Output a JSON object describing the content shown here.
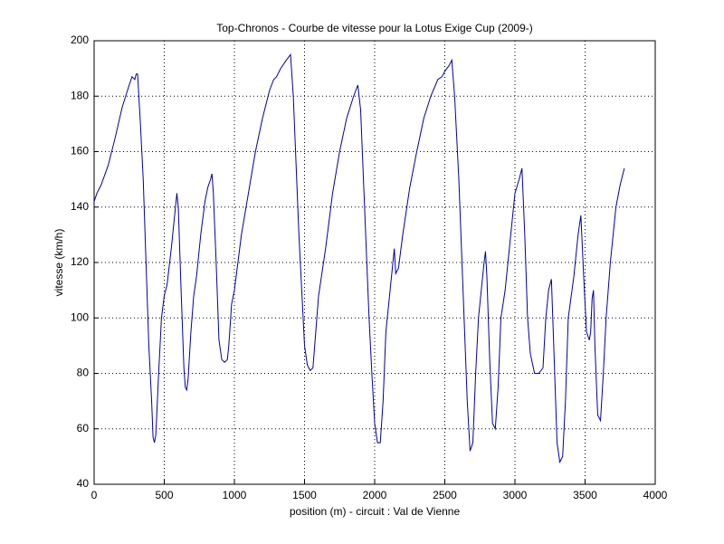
{
  "chart_data": {
    "type": "line",
    "title": "Top-Chronos - Courbe de vitesse pour la Lotus Exige Cup (2009-)",
    "x_label": "position (m) - circuit : Val de Vienne",
    "y_label": "vitesse (km/h)",
    "x": [
      0,
      20,
      50,
      100,
      150,
      200,
      250,
      270,
      290,
      300,
      310,
      330,
      350,
      370,
      390,
      410,
      420,
      430,
      440,
      460,
      480,
      500,
      520,
      550,
      570,
      590,
      600,
      620,
      640,
      650,
      660,
      670,
      690,
      710,
      730,
      760,
      790,
      810,
      830,
      840,
      850,
      870,
      890,
      910,
      930,
      950,
      960,
      980,
      1000,
      1050,
      1100,
      1150,
      1200,
      1250,
      1280,
      1300,
      1330,
      1370,
      1400,
      1420,
      1440,
      1460,
      1480,
      1500,
      1520,
      1540,
      1560,
      1580,
      1600,
      1650,
      1700,
      1750,
      1800,
      1850,
      1880,
      1900,
      1920,
      1940,
      1960,
      1980,
      2000,
      2020,
      2040,
      2060,
      2080,
      2100,
      2120,
      2140,
      2150,
      2170,
      2200,
      2250,
      2300,
      2350,
      2400,
      2450,
      2480,
      2500,
      2530,
      2550,
      2570,
      2600,
      2630,
      2660,
      2680,
      2700,
      2720,
      2740,
      2760,
      2780,
      2790,
      2800,
      2820,
      2840,
      2860,
      2880,
      2900,
      2930,
      2960,
      3000,
      3030,
      3050,
      3070,
      3090,
      3110,
      3140,
      3170,
      3200,
      3220,
      3240,
      3260,
      3280,
      3300,
      3320,
      3340,
      3360,
      3380,
      3420,
      3450,
      3470,
      3490,
      3510,
      3530,
      3540,
      3550,
      3560,
      3570,
      3590,
      3610,
      3630,
      3650,
      3680,
      3720,
      3750,
      3780
    ],
    "series": [
      {
        "name": "vitesse",
        "color": "#0000a0",
        "values": [
          142,
          145,
          148,
          155,
          165,
          176,
          184,
          187,
          186,
          188,
          188,
          170,
          150,
          120,
          90,
          70,
          57,
          55,
          58,
          80,
          100,
          108,
          112,
          125,
          135,
          145,
          140,
          110,
          82,
          75,
          74,
          78,
          95,
          108,
          115,
          130,
          142,
          147,
          150,
          152,
          145,
          120,
          92,
          85,
          84,
          85,
          90,
          105,
          110,
          130,
          145,
          160,
          172,
          182,
          186,
          187,
          190,
          193,
          195,
          180,
          155,
          130,
          110,
          90,
          83,
          81,
          82,
          95,
          108,
          125,
          145,
          160,
          172,
          180,
          184,
          175,
          150,
          125,
          100,
          80,
          62,
          55,
          55,
          70,
          95,
          105,
          115,
          125,
          116,
          118,
          130,
          147,
          160,
          172,
          180,
          186,
          187,
          189,
          191,
          193,
          180,
          150,
          110,
          70,
          52,
          55,
          80,
          100,
          110,
          120,
          124,
          115,
          85,
          62,
          60,
          75,
          100,
          110,
          125,
          145,
          150,
          154,
          130,
          100,
          87,
          80,
          80,
          82,
          100,
          110,
          114,
          85,
          55,
          48,
          50,
          70,
          100,
          115,
          130,
          137,
          115,
          95,
          92,
          95,
          107,
          110,
          90,
          65,
          63,
          80,
          100,
          120,
          140,
          148,
          154
        ]
      }
    ],
    "xlim": [
      0,
      4000
    ],
    "ylim": [
      40,
      200
    ],
    "xticks": [
      0,
      500,
      1000,
      1500,
      2000,
      2500,
      3000,
      3500,
      4000
    ],
    "yticks": [
      40,
      60,
      80,
      100,
      120,
      140,
      160,
      180,
      200
    ],
    "grid": true
  }
}
